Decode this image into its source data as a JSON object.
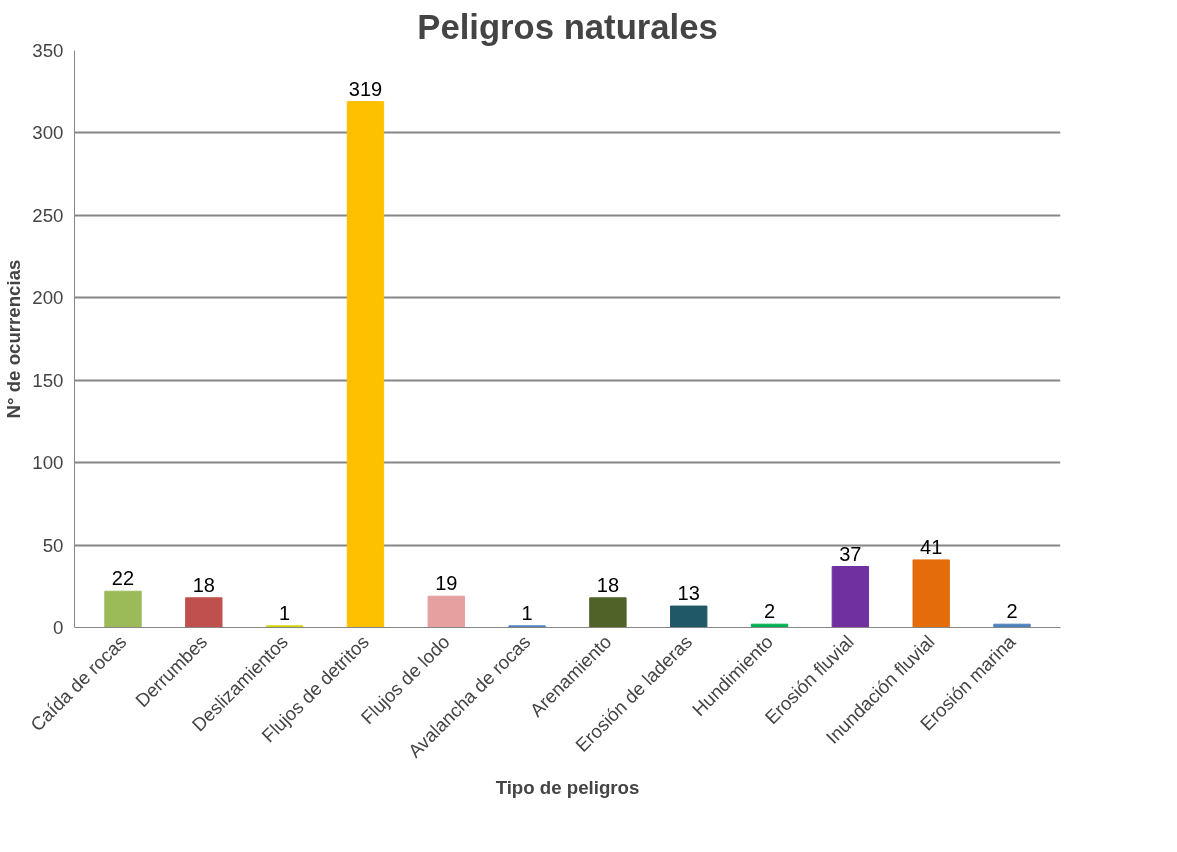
{
  "chart_data": {
    "type": "bar",
    "title": "Peligros naturales",
    "xlabel": "Tipo de peligros",
    "ylabel": "N° de ocurrencias",
    "categories": [
      "Caída de rocas",
      "Derrumbes",
      "Deslizamientos",
      "Flujos de detritos",
      "Flujos de lodo",
      "Avalancha de rocas",
      "Arenamiento",
      "Erosión de laderas",
      "Hundimiento",
      "Erosión fluvial",
      "Inundación fluvial",
      "Erosión marina"
    ],
    "values": [
      22,
      18,
      1,
      319,
      19,
      1,
      18,
      13,
      2,
      37,
      41,
      2
    ],
    "colors": [
      "#9bbb59",
      "#c0504d",
      "#d4d400",
      "#ffc000",
      "#e6a0a0",
      "#4f81bd",
      "#4f6228",
      "#215868",
      "#00b050",
      "#7030a0",
      "#e46c0a",
      "#4f81bd"
    ],
    "ylim": [
      0,
      350
    ],
    "yticks": [
      0,
      50,
      100,
      150,
      200,
      250,
      300,
      350
    ],
    "grid": "y",
    "data_labels": true
  }
}
